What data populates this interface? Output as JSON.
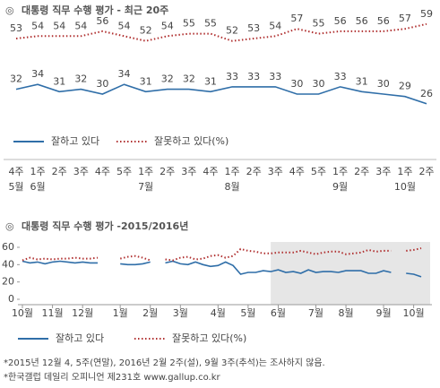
{
  "chart_data": [
    {
      "type": "line",
      "title_marker": "◎",
      "title": "대통령 직무 수행 평가 - 최근 20주",
      "categories": [
        "4주",
        "1주",
        "2주",
        "3주",
        "4주",
        "5주",
        "1주",
        "2주",
        "3주",
        "4주",
        "1주",
        "2주",
        "3주",
        "4주",
        "5주",
        "1주",
        "2주",
        "3주",
        "1주",
        "2주"
      ],
      "month_labels": [
        "5월",
        "6월",
        null,
        null,
        null,
        null,
        "7월",
        null,
        null,
        null,
        "8월",
        null,
        null,
        null,
        null,
        "9월",
        null,
        null,
        "10월",
        null
      ],
      "ylim": [
        10,
        65
      ],
      "series": [
        {
          "name": "잘하고 있다",
          "color": "#2f6ea8",
          "style": "solid",
          "values": [
            32,
            34,
            31,
            32,
            30,
            34,
            31,
            32,
            32,
            31,
            33,
            33,
            33,
            30,
            30,
            33,
            31,
            30,
            29,
            26
          ]
        },
        {
          "name": "잘못하고 있다(%)",
          "color": "#b03030",
          "style": "dotted",
          "values": [
            53,
            54,
            54,
            54,
            56,
            54,
            52,
            54,
            55,
            55,
            52,
            53,
            54,
            57,
            55,
            56,
            56,
            56,
            57,
            59
          ]
        }
      ]
    },
    {
      "type": "line",
      "title_marker": "◎",
      "title": "대통령 직무 수행 평가 -2015/2016년",
      "categories": [
        "10월",
        null,
        null,
        null,
        "11월",
        null,
        null,
        null,
        "12월",
        null,
        null,
        null,
        null,
        "1월",
        null,
        null,
        null,
        "2월",
        null,
        null,
        null,
        "3월",
        null,
        null,
        null,
        null,
        "4월",
        null,
        null,
        null,
        "5월",
        null,
        null,
        null,
        "6월",
        null,
        null,
        null,
        null,
        "7월",
        null,
        null,
        null,
        "8월",
        null,
        null,
        null,
        null,
        "9월",
        null,
        null,
        null,
        "10월",
        null
      ],
      "ylim": [
        0,
        60
      ],
      "yticks": [
        0,
        20,
        40,
        60
      ],
      "highlight": {
        "from": 33,
        "to": 53
      },
      "series": [
        {
          "name": "잘하고 있다",
          "color": "#2f6ea8",
          "style": "solid",
          "values": [
            44,
            42,
            43,
            41,
            43,
            44,
            43,
            42,
            43,
            42,
            42,
            null,
            null,
            41,
            40,
            40,
            41,
            43,
            null,
            42,
            44,
            41,
            40,
            43,
            40,
            38,
            39,
            43,
            39,
            29,
            31,
            31,
            33,
            32,
            34,
            31,
            32,
            30,
            34,
            31,
            32,
            32,
            31,
            33,
            33,
            33,
            30,
            30,
            33,
            31,
            null,
            30,
            29,
            26
          ]
        },
        {
          "name": "잘못하고 있다(%)",
          "color": "#b03030",
          "style": "dotted",
          "values": [
            45,
            48,
            46,
            47,
            46,
            47,
            47,
            48,
            47,
            47,
            48,
            null,
            null,
            47,
            49,
            50,
            48,
            45,
            null,
            46,
            45,
            48,
            49,
            46,
            47,
            50,
            51,
            48,
            50,
            58,
            56,
            55,
            53,
            53,
            54,
            54,
            54,
            56,
            54,
            52,
            54,
            55,
            55,
            52,
            53,
            54,
            57,
            55,
            56,
            56,
            null,
            56,
            57,
            59
          ]
        }
      ]
    }
  ],
  "notes": [
    "*2015년 12월 4, 5주(연말), 2016년 2월 2주(설), 9월 3주(추석)는 조사하지 않음.",
    "*한국갤럽 데일리 오피니언 제231호 www.gallup.co.kr"
  ]
}
